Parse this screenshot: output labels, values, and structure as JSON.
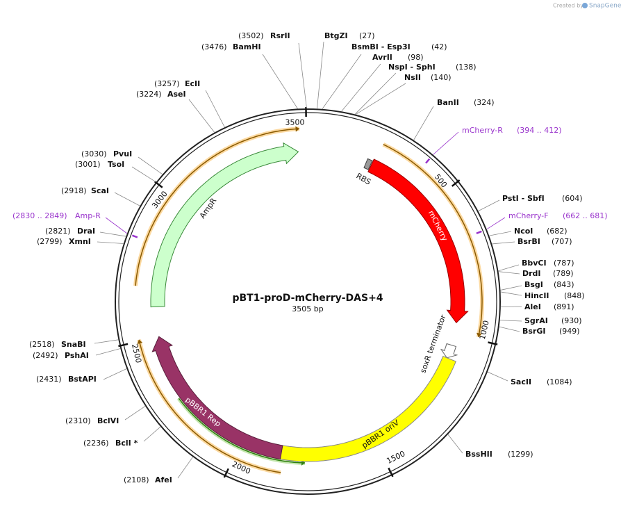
{
  "watermark": {
    "prefix": "Created by",
    "brand": "SnapGene"
  },
  "map": {
    "title": "pBT1-proD-mCherry-DAS+4",
    "length": "3505 bp",
    "ticks": [
      500,
      1000,
      1500,
      2000,
      2500,
      3000,
      3500
    ],
    "enzymes": [
      {
        "name": "RsrII",
        "position": "(3502)"
      },
      {
        "name": "BamHI",
        "position": "(3476)"
      },
      {
        "name": "EcII",
        "position": "(3257)"
      },
      {
        "name": "AseI",
        "position": "(3224)"
      },
      {
        "name": "PvuI",
        "position": "(3030)"
      },
      {
        "name": "TsoI",
        "position": "(3001)"
      },
      {
        "name": "ScaI",
        "position": "(2918)"
      },
      {
        "name": "DraI",
        "position": "(2821)"
      },
      {
        "name": "XmnI",
        "position": "(2799)"
      },
      {
        "name": "SnaBI",
        "position": "(2518)"
      },
      {
        "name": "PshAI",
        "position": "(2492)"
      },
      {
        "name": "BstAPI",
        "position": "(2431)"
      },
      {
        "name": "BclVI",
        "position": "(2310)"
      },
      {
        "name": "BclI *",
        "position": "(2236)"
      },
      {
        "name": "AfeI",
        "position": "(2108)"
      },
      {
        "name": "BtgZI",
        "position": "(27)"
      },
      {
        "name": "BsmBI  - Esp3I",
        "position": "(42)"
      },
      {
        "name": "AvrII",
        "position": "(98)"
      },
      {
        "name": "NspI  - SphI",
        "position": "(138)"
      },
      {
        "name": "NsII",
        "position": "(140)"
      },
      {
        "name": "BanII",
        "position": "(324)"
      },
      {
        "name": "PstI  - SbfI",
        "position": "(604)"
      },
      {
        "name": "NcoI",
        "position": "(682)"
      },
      {
        "name": "BsrBI",
        "position": "(707)"
      },
      {
        "name": "BbvCI",
        "position": "(787)"
      },
      {
        "name": "DrdI",
        "position": "(789)"
      },
      {
        "name": "BsgI",
        "position": "(843)"
      },
      {
        "name": "HincII",
        "position": "(848)"
      },
      {
        "name": "AleI",
        "position": "(891)"
      },
      {
        "name": "SgrAI",
        "position": "(930)"
      },
      {
        "name": "BsrGI",
        "position": "(949)"
      },
      {
        "name": "SacII",
        "position": "(1084)"
      },
      {
        "name": "BssHII",
        "position": "(1299)"
      }
    ],
    "primers": [
      {
        "name": "mCherry-R",
        "range": "(394 .. 412)"
      },
      {
        "name": "mCherry-F",
        "range": "(662 .. 681)"
      },
      {
        "name": "Amp-R",
        "range": "(2830 .. 2849)"
      }
    ],
    "features": [
      "AmpR",
      "RBS",
      "mCherry",
      "soxR terminator",
      "pBBR1 oriV",
      "pBBR1 Rep"
    ]
  }
}
